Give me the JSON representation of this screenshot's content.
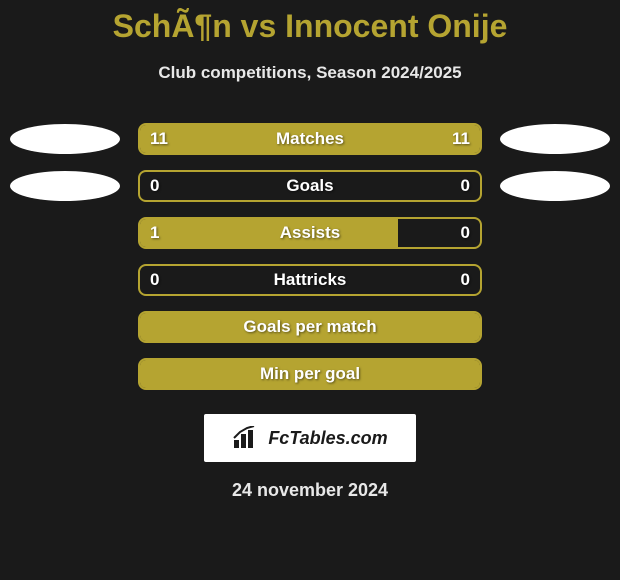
{
  "title": "SchÃ¶n vs Innocent Onije",
  "subtitle": "Club competitions, Season 2024/2025",
  "colors": {
    "background": "#1a1a1a",
    "accent": "#b5a431",
    "text_light": "#e8e8e8",
    "text_white": "#ffffff",
    "ellipse": "#ffffff",
    "logo_bg": "#ffffff",
    "logo_text": "#1a1a1a"
  },
  "stats": [
    {
      "label": "Matches",
      "left_value": "11",
      "right_value": "11",
      "left_pct": 50,
      "right_pct": 50,
      "show_ellipses": true,
      "show_values": true
    },
    {
      "label": "Goals",
      "left_value": "0",
      "right_value": "0",
      "left_pct": 0,
      "right_pct": 0,
      "show_ellipses": true,
      "show_values": true
    },
    {
      "label": "Assists",
      "left_value": "1",
      "right_value": "0",
      "left_pct": 76,
      "right_pct": 0,
      "show_ellipses": false,
      "show_values": true
    },
    {
      "label": "Hattricks",
      "left_value": "0",
      "right_value": "0",
      "left_pct": 0,
      "right_pct": 0,
      "show_ellipses": false,
      "show_values": true
    },
    {
      "label": "Goals per match",
      "left_value": "",
      "right_value": "",
      "left_pct": 100,
      "right_pct": 0,
      "full_fill": true,
      "show_ellipses": false,
      "show_values": false
    },
    {
      "label": "Min per goal",
      "left_value": "",
      "right_value": "",
      "left_pct": 100,
      "right_pct": 0,
      "full_fill": true,
      "show_ellipses": false,
      "show_values": false
    }
  ],
  "logo": {
    "text": "FcTables.com"
  },
  "date": "24 november 2024"
}
